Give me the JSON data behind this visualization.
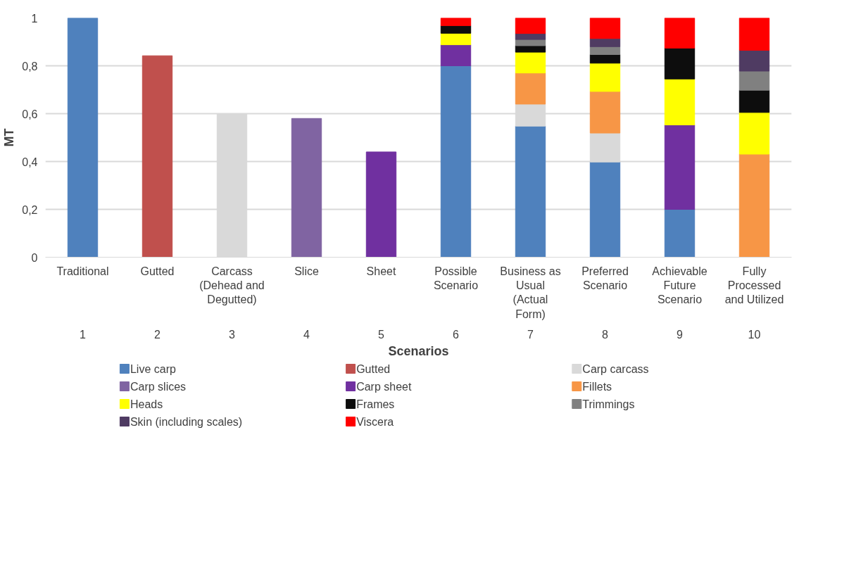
{
  "chart_data": {
    "type": "bar",
    "stacked": true,
    "ylabel": "MT",
    "xlabel": "Scenarios",
    "categories": [
      "Traditional",
      "Gutted",
      "Carcass (Dehead and Degutted)",
      "Slice",
      "Sheet",
      "Possible Scenario",
      "Business as Usual (Actual Form)",
      "Preferred Scenario",
      "Achievable Future Scenario",
      "Fully Processed and Utilized"
    ],
    "annotations": [
      "1",
      "2",
      "3",
      "4",
      "5",
      "6",
      "7",
      "8",
      "9",
      "10"
    ],
    "ylim": [
      0,
      1
    ],
    "yticks": [
      0,
      {
        "value": 0.2,
        "label": "0,2"
      },
      {
        "value": 0.4,
        "label": "0,4"
      },
      {
        "value": 0.6,
        "label": "0,6"
      },
      {
        "value": 0.8,
        "label": "0,8"
      },
      1
    ],
    "grid": "y",
    "legend": "bottom",
    "series": [
      {
        "name": "Live carp",
        "color": "#4f81bd",
        "values": [
          1,
          null,
          null,
          null,
          null,
          0.8,
          0.548,
          0.398,
          0.2,
          null
        ]
      },
      {
        "name": "Gutted",
        "color": "#c0504d",
        "values": [
          null,
          0.842,
          null,
          null,
          null,
          null,
          null,
          null,
          null,
          null
        ]
      },
      {
        "name": "Carp carcass",
        "color": "#d9d9d9",
        "values": [
          null,
          null,
          0.6,
          null,
          null,
          null,
          0.092,
          0.121,
          null,
          null
        ]
      },
      {
        "name": "Carp slices",
        "color": "#8064a2",
        "values": [
          null,
          null,
          null,
          0.58,
          null,
          null,
          null,
          null,
          null,
          null
        ]
      },
      {
        "name": "Carp sheet",
        "color": "#7030a0",
        "values": [
          null,
          null,
          null,
          null,
          0.44,
          0.088,
          null,
          null,
          0.353,
          null
        ]
      },
      {
        "name": "Fillets",
        "color": "#f79646",
        "values": [
          null,
          null,
          null,
          null,
          null,
          null,
          0.13,
          0.174,
          null,
          0.431
        ]
      },
      {
        "name": "Heads",
        "color": "#ffff00",
        "values": [
          null,
          null,
          null,
          null,
          null,
          0.048,
          0.087,
          0.118,
          0.192,
          0.174
        ]
      },
      {
        "name": "Frames",
        "color": "#0d0d0d",
        "values": [
          null,
          null,
          null,
          null,
          null,
          0.032,
          0.027,
          0.036,
          0.129,
          0.093
        ]
      },
      {
        "name": "Trimmings",
        "color": "#808080",
        "values": [
          null,
          null,
          null,
          null,
          null,
          null,
          0.026,
          0.033,
          null,
          0.08
        ]
      },
      {
        "name": "Skin (including scales)",
        "color": "#4f3b62",
        "values": [
          null,
          null,
          null,
          null,
          null,
          null,
          0.025,
          0.034,
          null,
          0.087
        ]
      },
      {
        "name": "Viscera",
        "color": "#ff0000",
        "values": [
          null,
          null,
          null,
          null,
          null,
          0.032,
          0.065,
          0.086,
          0.126,
          0.135
        ]
      }
    ]
  }
}
